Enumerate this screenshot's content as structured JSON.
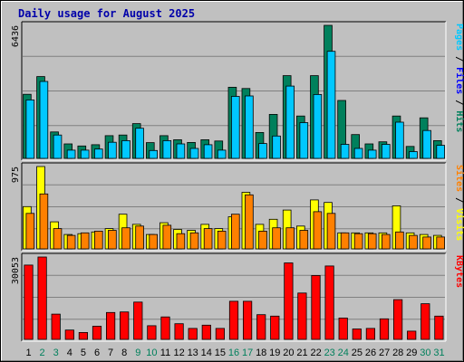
{
  "title": "Daily usage for August 2025",
  "colors": {
    "hits": "#00805c",
    "files": "#00c8ff",
    "sites": "#ff8000",
    "visits": "#ffff00",
    "kbytes": "#ff0000",
    "weekday_label": "#000000",
    "weekend_label": "#00805c",
    "plot_bg": "#c0c0c0",
    "frame_bg": "#c0c0c0"
  },
  "chart_data": {
    "type": "bar",
    "days": [
      "1",
      "2",
      "3",
      "4",
      "5",
      "6",
      "7",
      "8",
      "9",
      "10",
      "11",
      "12",
      "13",
      "14",
      "15",
      "16",
      "17",
      "18",
      "19",
      "20",
      "21",
      "22",
      "23",
      "24",
      "25",
      "26",
      "27",
      "28",
      "29",
      "30",
      "31"
    ],
    "weekend_days": [
      "2",
      "3",
      "9",
      "10",
      "16",
      "17",
      "23",
      "24",
      "30",
      "31"
    ],
    "panels": [
      {
        "name": "pages-files-hits",
        "ymax": 6436,
        "ymax_label": "6436",
        "right_label": [
          {
            "text": "Pages",
            "color": "#00c8ff"
          },
          {
            "text": " / ",
            "color": "#000000"
          },
          {
            "text": "Files",
            "color": "#0000ff"
          },
          {
            "text": " / ",
            "color": "#000000"
          },
          {
            "text": "Hits",
            "color": "#00805c"
          }
        ],
        "series": [
          {
            "name": "Hits",
            "color": "#00805c",
            "values": [
              3100,
              3960,
              1280,
              700,
              600,
              660,
              1100,
              1130,
              1680,
              760,
              1100,
              900,
              770,
              900,
              840,
              3440,
              3380,
              1250,
              2130,
              4000,
              2050,
              4000,
              6436,
              2800,
              1150,
              700,
              800,
              2050,
              580,
              1960,
              860
            ]
          },
          {
            "name": "Files",
            "color": "#00c8ff",
            "values": [
              2830,
              3720,
              1130,
              400,
              400,
              450,
              780,
              860,
              1460,
              380,
              860,
              700,
              480,
              660,
              400,
              3000,
              3020,
              720,
              1080,
              3500,
              1730,
              3090,
              5180,
              680,
              480,
              400,
              680,
              1750,
              330,
              1350,
              630
            ]
          }
        ]
      },
      {
        "name": "visits-sites",
        "ymax": 975,
        "ymax_label": "975",
        "right_label": [
          {
            "text": "Sites",
            "color": "#ff8000"
          },
          {
            "text": " / ",
            "color": "#000000"
          },
          {
            "text": "Visits",
            "color": "#ffff00"
          }
        ],
        "series": [
          {
            "name": "Visits",
            "color": "#ffff00",
            "values": [
              500,
              975,
              320,
              170,
              180,
              200,
              240,
              410,
              290,
              170,
              310,
              230,
              220,
              290,
              240,
              380,
              670,
              290,
              350,
              460,
              270,
              580,
              550,
              190,
              190,
              190,
              190,
              510,
              190,
              170,
              160
            ]
          },
          {
            "name": "Sites",
            "color": "#ff8000",
            "values": [
              420,
              650,
              240,
              160,
              190,
              210,
              220,
              250,
              270,
              170,
              280,
              180,
              190,
              240,
              210,
              410,
              640,
              210,
              250,
              250,
              220,
              440,
              420,
              190,
              180,
              180,
              170,
              200,
              160,
              140,
              140
            ]
          }
        ]
      },
      {
        "name": "kbytes",
        "ymax": 30053,
        "ymax_label": "30053",
        "right_label": [
          {
            "text": "KBytes",
            "color": "#ff0000"
          }
        ],
        "series": [
          {
            "name": "KBytes",
            "color": "#ff0000",
            "values": [
              27100,
              30053,
              9200,
              3400,
              2500,
              4800,
              9800,
              10000,
              13600,
              5000,
              8200,
              5700,
              4000,
              5200,
              4000,
              13900,
              13900,
              9000,
              8500,
              27900,
              16900,
              23300,
              26800,
              7800,
              3800,
              4000,
              7500,
              14500,
              3000,
              13000,
              8500
            ]
          }
        ]
      }
    ]
  }
}
